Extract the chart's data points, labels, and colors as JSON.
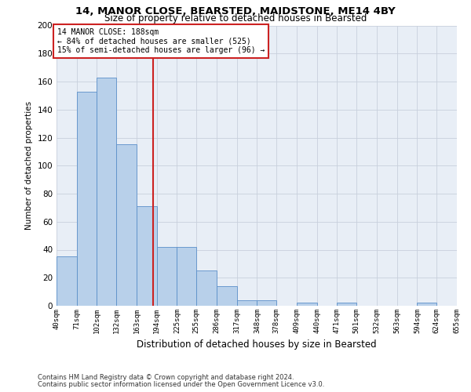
{
  "title_line1": "14, MANOR CLOSE, BEARSTED, MAIDSTONE, ME14 4BY",
  "title_line2": "Size of property relative to detached houses in Bearsted",
  "xlabel": "Distribution of detached houses by size in Bearsted",
  "ylabel": "Number of detached properties",
  "bar_color": "#b8d0ea",
  "bar_edge_color": "#5b8fc9",
  "bar_left_edges": [
    40,
    71,
    102,
    132,
    163,
    194,
    225,
    255,
    286,
    317,
    348,
    378,
    409,
    440,
    471,
    501,
    532,
    563,
    594,
    624
  ],
  "bar_widths": [
    31,
    31,
    30,
    31,
    31,
    31,
    30,
    31,
    31,
    31,
    30,
    31,
    31,
    31,
    30,
    31,
    31,
    31,
    30,
    31
  ],
  "bar_heights": [
    35,
    153,
    163,
    115,
    71,
    42,
    42,
    25,
    14,
    4,
    4,
    0,
    2,
    0,
    2,
    0,
    0,
    0,
    2,
    0
  ],
  "tick_labels": [
    "40sqm",
    "71sqm",
    "102sqm",
    "132sqm",
    "163sqm",
    "194sqm",
    "225sqm",
    "255sqm",
    "286sqm",
    "317sqm",
    "348sqm",
    "378sqm",
    "409sqm",
    "440sqm",
    "471sqm",
    "501sqm",
    "532sqm",
    "563sqm",
    "594sqm",
    "624sqm",
    "655sqm"
  ],
  "vline_x": 188,
  "vline_color": "#cc2222",
  "annotation_text": "14 MANOR CLOSE: 188sqm\n← 84% of detached houses are smaller (525)\n15% of semi-detached houses are larger (96) →",
  "annotation_box_color": "#cc2222",
  "ylim": [
    0,
    200
  ],
  "yticks": [
    0,
    20,
    40,
    60,
    80,
    100,
    120,
    140,
    160,
    180,
    200
  ],
  "grid_color": "#c8d0dc",
  "bg_color": "#e8eef6",
  "footnote1": "Contains HM Land Registry data © Crown copyright and database right 2024.",
  "footnote2": "Contains public sector information licensed under the Open Government Licence v3.0."
}
